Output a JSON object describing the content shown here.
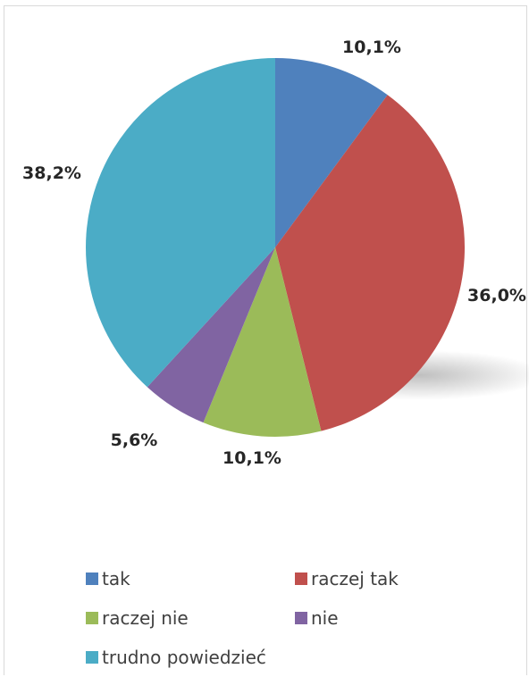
{
  "chart_data": {
    "type": "pie",
    "title": "",
    "categories": [
      "tak",
      "raczej tak",
      "raczej nie",
      "nie",
      "trudno powiedzieć"
    ],
    "values": [
      10.1,
      36.0,
      10.1,
      5.6,
      38.2
    ],
    "labels": [
      "10,1%",
      "36,0%",
      "10,1%",
      "5,6%",
      "38,2%"
    ],
    "colors": [
      "#4F81BD",
      "#C0504D",
      "#9BBB59",
      "#8064A2",
      "#4BACC6"
    ],
    "legend_placement": "bottom"
  }
}
